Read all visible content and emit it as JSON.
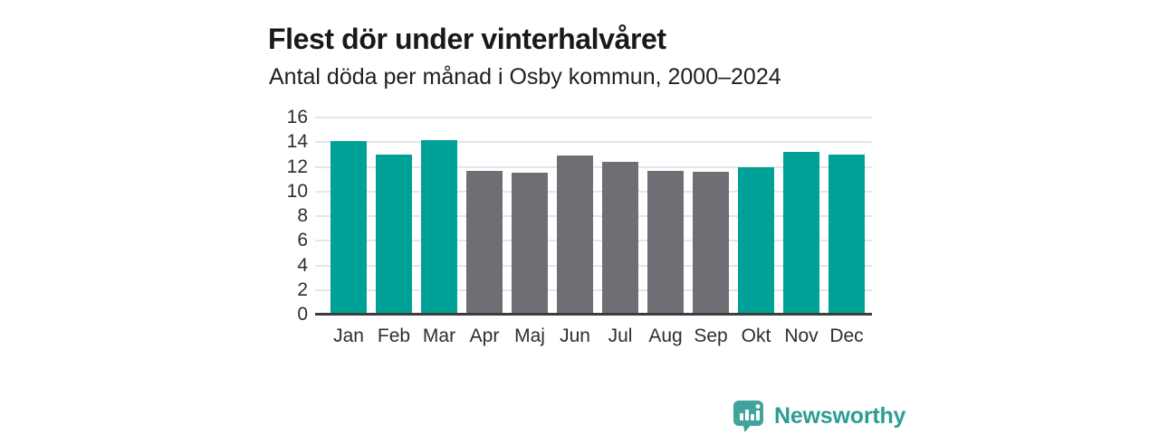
{
  "header": {
    "title": "Flest dör under vinterhalvåret",
    "subtitle": "Antal döda per månad i Osby kommun, 2000–2024"
  },
  "chart_data": {
    "type": "bar",
    "title": "Flest dör under vinterhalvåret",
    "subtitle": "Antal döda per månad i Osby kommun, 2000–2024",
    "categories": [
      "Jan",
      "Feb",
      "Mar",
      "Apr",
      "Maj",
      "Jun",
      "Jul",
      "Aug",
      "Sep",
      "Okt",
      "Nov",
      "Dec"
    ],
    "values": [
      14.1,
      13.0,
      14.2,
      11.7,
      11.5,
      12.9,
      12.4,
      11.7,
      11.6,
      12.0,
      13.2,
      13.0
    ],
    "xlabel": "",
    "ylabel": "",
    "ylim": [
      0,
      16
    ],
    "yticks": [
      0,
      2,
      4,
      6,
      8,
      10,
      12,
      14,
      16
    ],
    "grid": true,
    "legend": "none",
    "highlight_group": {
      "note": "winter-half-year months drawn in teal, summer months in gray",
      "teal_months": [
        "Jan",
        "Feb",
        "Mar",
        "Okt",
        "Nov",
        "Dec"
      ]
    },
    "colors": {
      "bar_teal": "#00a298",
      "bar_gray": "#706e74",
      "gridline": "#e6e6ea",
      "axis_line": "#3c3c3c",
      "tick_label": "#2e2e2e"
    }
  },
  "footer": {
    "brand": "Newsworthy",
    "brand_text_color": "#2d9c95",
    "brand_icon_color": "#3fa49c",
    "brand_icon": "speech-bubble-bar-chart-icon"
  }
}
